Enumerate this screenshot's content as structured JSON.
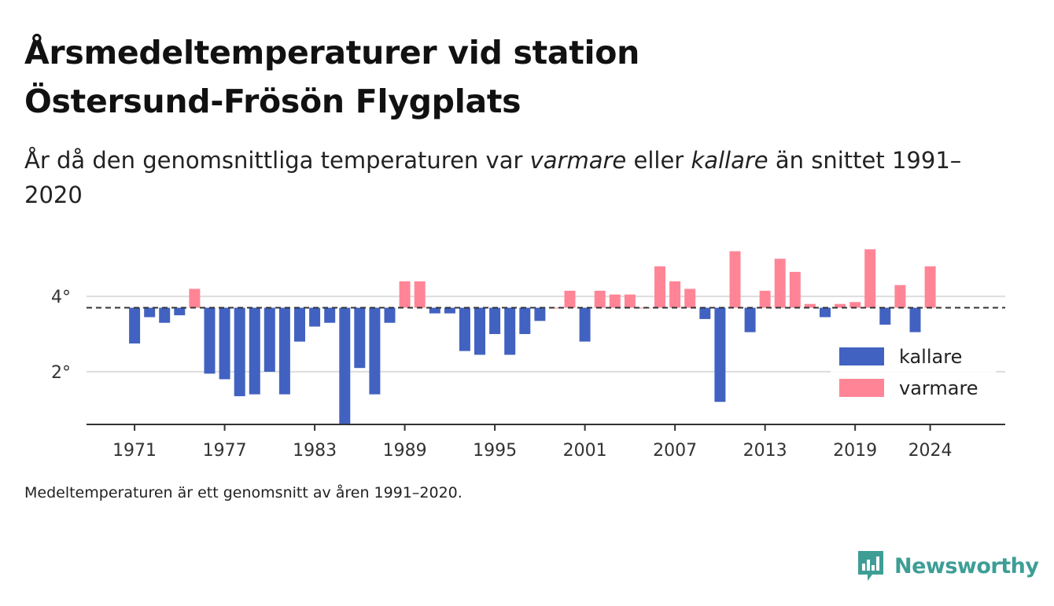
{
  "title": {
    "line1": "Årsmedeltemperaturer vid station",
    "line2": "Östersund-Frösön Flygplats"
  },
  "subtitle": {
    "part1": "År då den genomsnittliga temperaturen var ",
    "warmer_word": "varmare",
    "part2": " eller ",
    "colder_word": "kallare",
    "part3": " än snittet 1991–2020"
  },
  "note": "Medeltemperaturen är ett genomsnitt av åren 1991–2020.",
  "brand": {
    "name": "Newsworthy",
    "icon": "newsworthy-logo-icon"
  },
  "colors": {
    "colder": "#4262c1",
    "warmer": "#ff8596",
    "brand": "#3e9e96"
  },
  "chart_data": {
    "type": "bar",
    "baseline": 3.7,
    "baseline_style": "dashed",
    "y_ticks": [
      2,
      4
    ],
    "y_tick_labels": [
      "2°",
      "4°"
    ],
    "ylim": [
      0.6,
      5.4
    ],
    "x_ticks": [
      1971,
      1977,
      1983,
      1989,
      1995,
      2001,
      2007,
      2013,
      2019,
      2024
    ],
    "xlim": [
      1967.8,
      2029
    ],
    "grid": "horizontal",
    "legend": {
      "position": "bottom-right",
      "items": [
        {
          "label": "kallare",
          "color": "#4262c1"
        },
        {
          "label": "varmare",
          "color": "#ff8596"
        }
      ]
    },
    "years": [
      1971,
      1972,
      1973,
      1974,
      1975,
      1976,
      1977,
      1978,
      1979,
      1980,
      1981,
      1982,
      1983,
      1984,
      1985,
      1986,
      1987,
      1988,
      1989,
      1990,
      1991,
      1992,
      1993,
      1994,
      1995,
      1996,
      1997,
      1998,
      1999,
      2000,
      2001,
      2002,
      2003,
      2004,
      2005,
      2006,
      2007,
      2008,
      2009,
      2010,
      2011,
      2012,
      2013,
      2014,
      2015,
      2016,
      2017,
      2018,
      2019,
      2020,
      2021,
      2022,
      2023,
      2024
    ],
    "values": [
      2.75,
      3.45,
      3.3,
      3.5,
      4.2,
      1.95,
      1.8,
      1.35,
      1.4,
      2.0,
      1.4,
      2.8,
      3.2,
      3.3,
      0.6,
      2.1,
      1.4,
      3.3,
      4.4,
      4.4,
      3.55,
      3.55,
      2.55,
      2.45,
      3.0,
      2.45,
      3.0,
      3.35,
      3.7,
      4.15,
      2.8,
      4.15,
      4.05,
      4.05,
      3.7,
      4.8,
      4.4,
      4.2,
      3.4,
      1.2,
      5.2,
      3.05,
      4.15,
      5.0,
      4.65,
      3.8,
      3.45,
      3.8,
      3.85,
      5.25,
      3.25,
      4.3,
      3.05,
      4.8
    ]
  }
}
